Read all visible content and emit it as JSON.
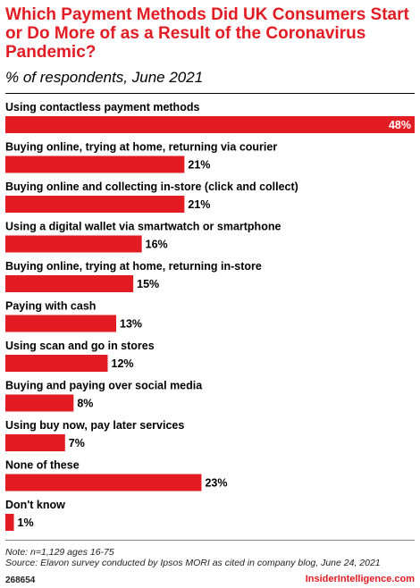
{
  "header": {
    "title": "Which Payment Methods Did UK Consumers Start or Do More of as a Result of the Coronavirus Pandemic?",
    "subtitle": "% of respondents, June 2021"
  },
  "chart_data": {
    "type": "bar",
    "orientation": "horizontal",
    "categories": [
      "Using contactless payment methods",
      "Buying online, trying at home, returning via courier",
      "Buying online and collecting in-store (click and collect)",
      "Using a digital wallet via smartwatch or smartphone",
      "Buying online, trying at home, returning in-store",
      "Paying with cash",
      "Using scan and go in stores",
      "Buying and paying over social media",
      "Using buy now, pay later services",
      "None of these",
      "Don't know"
    ],
    "values": [
      48,
      21,
      21,
      16,
      15,
      13,
      12,
      8,
      7,
      23,
      1
    ],
    "value_suffix": "%",
    "xlim": [
      0,
      48
    ],
    "bar_color": "#e31b23",
    "grid": false
  },
  "footer": {
    "note": "Note: n=1,129 ages 16-75",
    "source": "Source: Elavon survey conducted by Ipsos MORI as cited in company blog, June 24, 2021",
    "chart_id": "268654",
    "brand": "InsiderIntelligence.com"
  }
}
